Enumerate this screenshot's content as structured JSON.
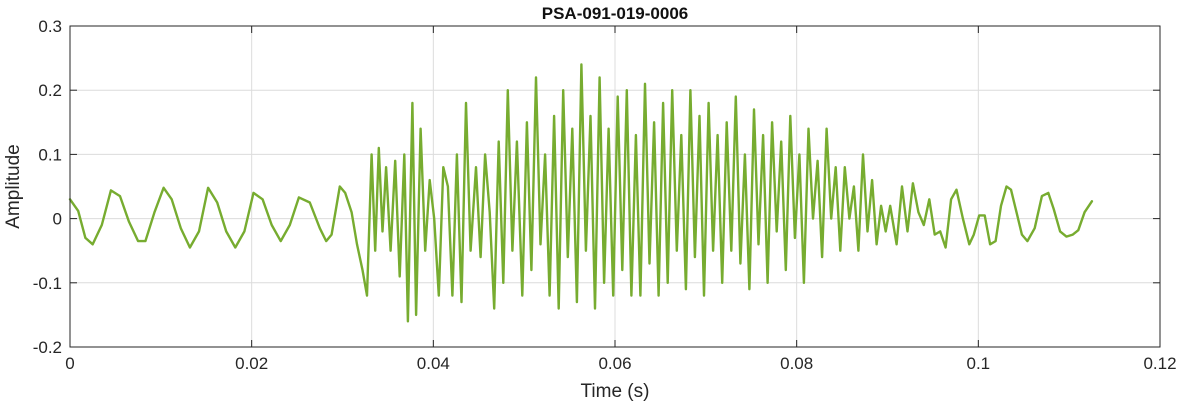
{
  "chart_data": {
    "type": "line",
    "title": "PSA-091-019-0006",
    "xlabel": "Time (s)",
    "ylabel": "Amplitude",
    "xlim": [
      0,
      0.12
    ],
    "ylim": [
      -0.2,
      0.3
    ],
    "x_ticks": [
      0,
      0.02,
      0.04,
      0.06,
      0.08,
      0.1,
      0.12
    ],
    "x_tick_labels": [
      "0",
      "0.02",
      "0.04",
      "0.06",
      "0.08",
      "0.1",
      "0.12"
    ],
    "y_ticks": [
      -0.2,
      -0.1,
      0,
      0.1,
      0.2,
      0.3
    ],
    "y_tick_labels": [
      "-0.2",
      "-0.1",
      "0",
      "0.1",
      "0.2",
      "0.3"
    ],
    "grid": true,
    "series": [
      {
        "color": "#77AC30",
        "points": [
          [
            0.0,
            0.03
          ],
          [
            0.0009,
            0.012
          ],
          [
            0.0017,
            -0.03
          ],
          [
            0.0025,
            -0.04
          ],
          [
            0.0035,
            -0.01
          ],
          [
            0.0045,
            0.044
          ],
          [
            0.0055,
            0.035
          ],
          [
            0.0065,
            -0.005
          ],
          [
            0.0075,
            -0.035
          ],
          [
            0.0083,
            -0.035
          ],
          [
            0.0093,
            0.01
          ],
          [
            0.0103,
            0.048
          ],
          [
            0.0112,
            0.03
          ],
          [
            0.0122,
            -0.015
          ],
          [
            0.0132,
            -0.045
          ],
          [
            0.0142,
            -0.02
          ],
          [
            0.0152,
            0.048
          ],
          [
            0.0162,
            0.025
          ],
          [
            0.0172,
            -0.02
          ],
          [
            0.0182,
            -0.045
          ],
          [
            0.0192,
            -0.02
          ],
          [
            0.0202,
            0.04
          ],
          [
            0.0212,
            0.03
          ],
          [
            0.0222,
            -0.01
          ],
          [
            0.0232,
            -0.035
          ],
          [
            0.0242,
            -0.01
          ],
          [
            0.0252,
            0.033
          ],
          [
            0.0264,
            0.025
          ],
          [
            0.0275,
            -0.015
          ],
          [
            0.0282,
            -0.035
          ],
          [
            0.0288,
            -0.025
          ],
          [
            0.0297,
            0.05
          ],
          [
            0.0303,
            0.04
          ],
          [
            0.031,
            0.01
          ],
          [
            0.0316,
            -0.04
          ],
          [
            0.0322,
            -0.08
          ],
          [
            0.0327,
            -0.12
          ],
          [
            0.0332,
            0.1
          ],
          [
            0.0336,
            -0.05
          ],
          [
            0.034,
            0.11
          ],
          [
            0.0344,
            -0.02
          ],
          [
            0.0348,
            0.08
          ],
          [
            0.0353,
            -0.05
          ],
          [
            0.0358,
            0.09
          ],
          [
            0.0363,
            -0.09
          ],
          [
            0.0368,
            0.1
          ],
          [
            0.0372,
            -0.16
          ],
          [
            0.0377,
            0.18
          ],
          [
            0.0381,
            -0.15
          ],
          [
            0.0386,
            0.14
          ],
          [
            0.0391,
            -0.05
          ],
          [
            0.0396,
            0.06
          ],
          [
            0.0401,
            0.0
          ],
          [
            0.0406,
            -0.12
          ],
          [
            0.0411,
            0.08
          ],
          [
            0.0416,
            0.05
          ],
          [
            0.0421,
            -0.12
          ],
          [
            0.0426,
            0.1
          ],
          [
            0.0431,
            -0.13
          ],
          [
            0.0436,
            0.18
          ],
          [
            0.0441,
            -0.05
          ],
          [
            0.0447,
            0.08
          ],
          [
            0.0452,
            -0.06
          ],
          [
            0.0457,
            0.1
          ],
          [
            0.0462,
            0.01
          ],
          [
            0.0467,
            -0.14
          ],
          [
            0.0472,
            0.12
          ],
          [
            0.0477,
            -0.1
          ],
          [
            0.0482,
            0.2
          ],
          [
            0.0487,
            -0.05
          ],
          [
            0.0492,
            0.12
          ],
          [
            0.0498,
            -0.12
          ],
          [
            0.0503,
            0.15
          ],
          [
            0.0508,
            -0.08
          ],
          [
            0.0513,
            0.22
          ],
          [
            0.0518,
            -0.04
          ],
          [
            0.0523,
            0.1
          ],
          [
            0.0528,
            -0.12
          ],
          [
            0.0533,
            0.16
          ],
          [
            0.0538,
            -0.14
          ],
          [
            0.0543,
            0.2
          ],
          [
            0.0548,
            -0.06
          ],
          [
            0.0553,
            0.14
          ],
          [
            0.0558,
            -0.13
          ],
          [
            0.0563,
            0.24
          ],
          [
            0.0568,
            -0.05
          ],
          [
            0.0573,
            0.16
          ],
          [
            0.0578,
            -0.14
          ],
          [
            0.0583,
            0.22
          ],
          [
            0.0588,
            -0.1
          ],
          [
            0.0593,
            0.14
          ],
          [
            0.0598,
            -0.12
          ],
          [
            0.0603,
            0.19
          ],
          [
            0.0608,
            -0.08
          ],
          [
            0.0613,
            0.2
          ],
          [
            0.0618,
            -0.12
          ],
          [
            0.0623,
            0.13
          ],
          [
            0.0628,
            -0.12
          ],
          [
            0.0633,
            0.21
          ],
          [
            0.0638,
            -0.07
          ],
          [
            0.0643,
            0.15
          ],
          [
            0.0648,
            -0.12
          ],
          [
            0.0653,
            0.18
          ],
          [
            0.0658,
            -0.1
          ],
          [
            0.0663,
            0.2
          ],
          [
            0.0668,
            -0.05
          ],
          [
            0.0673,
            0.13
          ],
          [
            0.0678,
            -0.11
          ],
          [
            0.0683,
            0.2
          ],
          [
            0.0688,
            -0.06
          ],
          [
            0.0693,
            0.16
          ],
          [
            0.0698,
            -0.12
          ],
          [
            0.0703,
            0.18
          ],
          [
            0.0708,
            -0.05
          ],
          [
            0.0713,
            0.13
          ],
          [
            0.0718,
            -0.1
          ],
          [
            0.0723,
            0.15
          ],
          [
            0.0728,
            -0.05
          ],
          [
            0.0733,
            0.19
          ],
          [
            0.0738,
            -0.07
          ],
          [
            0.0743,
            0.1
          ],
          [
            0.0748,
            -0.11
          ],
          [
            0.0753,
            0.17
          ],
          [
            0.0758,
            -0.04
          ],
          [
            0.0763,
            0.13
          ],
          [
            0.0768,
            -0.1
          ],
          [
            0.0773,
            0.15
          ],
          [
            0.0778,
            -0.02
          ],
          [
            0.0783,
            0.12
          ],
          [
            0.0788,
            -0.08
          ],
          [
            0.0793,
            0.16
          ],
          [
            0.0798,
            -0.03
          ],
          [
            0.0803,
            0.1
          ],
          [
            0.0808,
            -0.1
          ],
          [
            0.0813,
            0.14
          ],
          [
            0.0818,
            0.0
          ],
          [
            0.0823,
            0.09
          ],
          [
            0.0828,
            -0.06
          ],
          [
            0.0833,
            0.14
          ],
          [
            0.0838,
            0.0
          ],
          [
            0.0843,
            0.08
          ],
          [
            0.0848,
            -0.05
          ],
          [
            0.0853,
            0.08
          ],
          [
            0.0858,
            0.0
          ],
          [
            0.0863,
            0.05
          ],
          [
            0.0868,
            -0.05
          ],
          [
            0.0873,
            0.1
          ],
          [
            0.0878,
            -0.02
          ],
          [
            0.0883,
            0.06
          ],
          [
            0.0888,
            -0.04
          ],
          [
            0.0893,
            0.02
          ],
          [
            0.0898,
            -0.02
          ],
          [
            0.0903,
            0.02
          ],
          [
            0.091,
            -0.04
          ],
          [
            0.0916,
            0.05
          ],
          [
            0.0922,
            -0.02
          ],
          [
            0.0928,
            0.055
          ],
          [
            0.0934,
            0.01
          ],
          [
            0.094,
            -0.01
          ],
          [
            0.0946,
            0.03
          ],
          [
            0.0952,
            -0.025
          ],
          [
            0.0958,
            -0.02
          ],
          [
            0.0964,
            -0.045
          ],
          [
            0.097,
            0.03
          ],
          [
            0.0976,
            0.045
          ],
          [
            0.0983,
            0.0
          ],
          [
            0.099,
            -0.04
          ],
          [
            0.0995,
            -0.025
          ],
          [
            0.1001,
            0.005
          ],
          [
            0.1007,
            0.005
          ],
          [
            0.1013,
            -0.04
          ],
          [
            0.1019,
            -0.035
          ],
          [
            0.1025,
            0.02
          ],
          [
            0.1031,
            0.05
          ],
          [
            0.1036,
            0.045
          ],
          [
            0.1042,
            0.01
          ],
          [
            0.1048,
            -0.025
          ],
          [
            0.1054,
            -0.035
          ],
          [
            0.1062,
            -0.015
          ],
          [
            0.107,
            0.035
          ],
          [
            0.1077,
            0.04
          ],
          [
            0.1083,
            0.015
          ],
          [
            0.109,
            -0.02
          ],
          [
            0.1097,
            -0.028
          ],
          [
            0.1104,
            -0.025
          ],
          [
            0.111,
            -0.018
          ],
          [
            0.1117,
            0.01
          ],
          [
            0.1125,
            0.027
          ]
        ]
      }
    ]
  }
}
